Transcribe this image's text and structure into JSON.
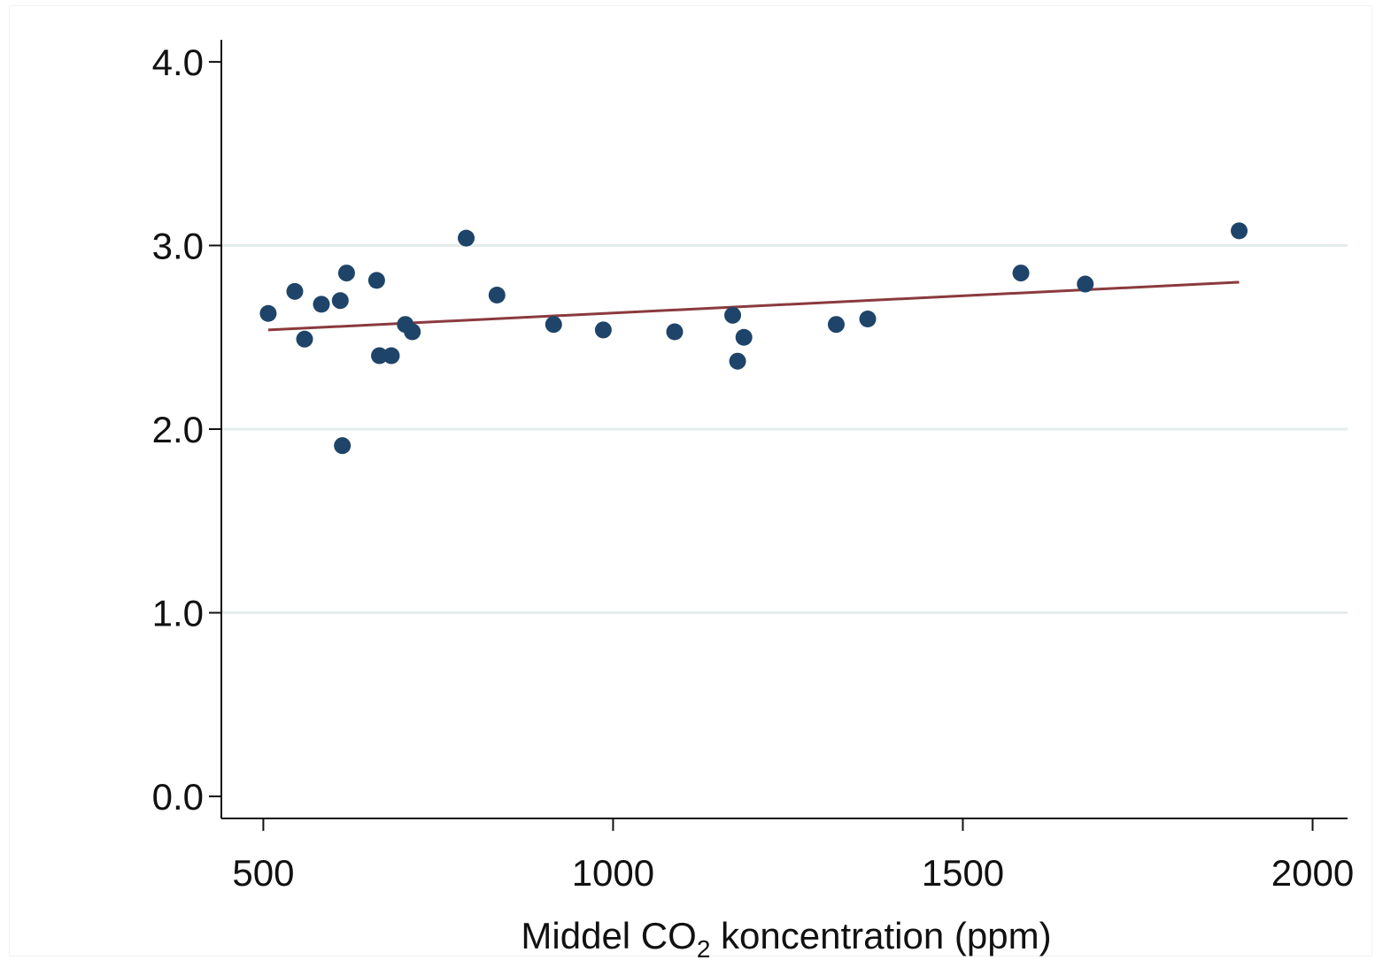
{
  "chart_data": {
    "type": "scatter",
    "title": "",
    "xlabel": {
      "main": "Middel CO",
      "subscript": "2",
      "suffix": " koncentration (ppm)"
    },
    "ylabel": "",
    "xlim": [
      440,
      2050
    ],
    "ylim": [
      -0.12,
      4.12
    ],
    "x_ticks": [
      500,
      1000,
      1500,
      2000
    ],
    "x_tick_labels": [
      "500",
      "1000",
      "1500",
      "2000"
    ],
    "y_ticks": [
      0,
      1,
      2,
      3,
      4
    ],
    "y_tick_labels": [
      "0.0",
      "1.0",
      "2.0",
      "3.0",
      "4.0"
    ],
    "grid": "horizontal",
    "legend": "none",
    "colors": {
      "points": "#1f4469",
      "fit_line": "#8b3a3e",
      "grid": "#e4ecec",
      "axis": "#111111"
    },
    "series": [
      {
        "type": "scatter",
        "points": [
          {
            "x": 507,
            "y": 2.63
          },
          {
            "x": 545,
            "y": 2.75
          },
          {
            "x": 559,
            "y": 2.49
          },
          {
            "x": 583,
            "y": 2.68
          },
          {
            "x": 610,
            "y": 2.7
          },
          {
            "x": 613,
            "y": 1.91
          },
          {
            "x": 619,
            "y": 2.85
          },
          {
            "x": 662,
            "y": 2.81
          },
          {
            "x": 666,
            "y": 2.4
          },
          {
            "x": 683,
            "y": 2.4
          },
          {
            "x": 703,
            "y": 2.57
          },
          {
            "x": 713,
            "y": 2.53
          },
          {
            "x": 790,
            "y": 3.04
          },
          {
            "x": 834,
            "y": 2.73
          },
          {
            "x": 915,
            "y": 2.57
          },
          {
            "x": 986,
            "y": 2.54
          },
          {
            "x": 1088,
            "y": 2.53
          },
          {
            "x": 1171,
            "y": 2.62
          },
          {
            "x": 1178,
            "y": 2.37
          },
          {
            "x": 1187,
            "y": 2.5
          },
          {
            "x": 1319,
            "y": 2.57
          },
          {
            "x": 1364,
            "y": 2.6
          },
          {
            "x": 1583,
            "y": 2.85
          },
          {
            "x": 1675,
            "y": 2.79
          },
          {
            "x": 1895,
            "y": 3.08
          }
        ]
      },
      {
        "type": "line",
        "x": [
          507,
          1895
        ],
        "y": [
          2.54,
          2.8
        ]
      }
    ]
  }
}
